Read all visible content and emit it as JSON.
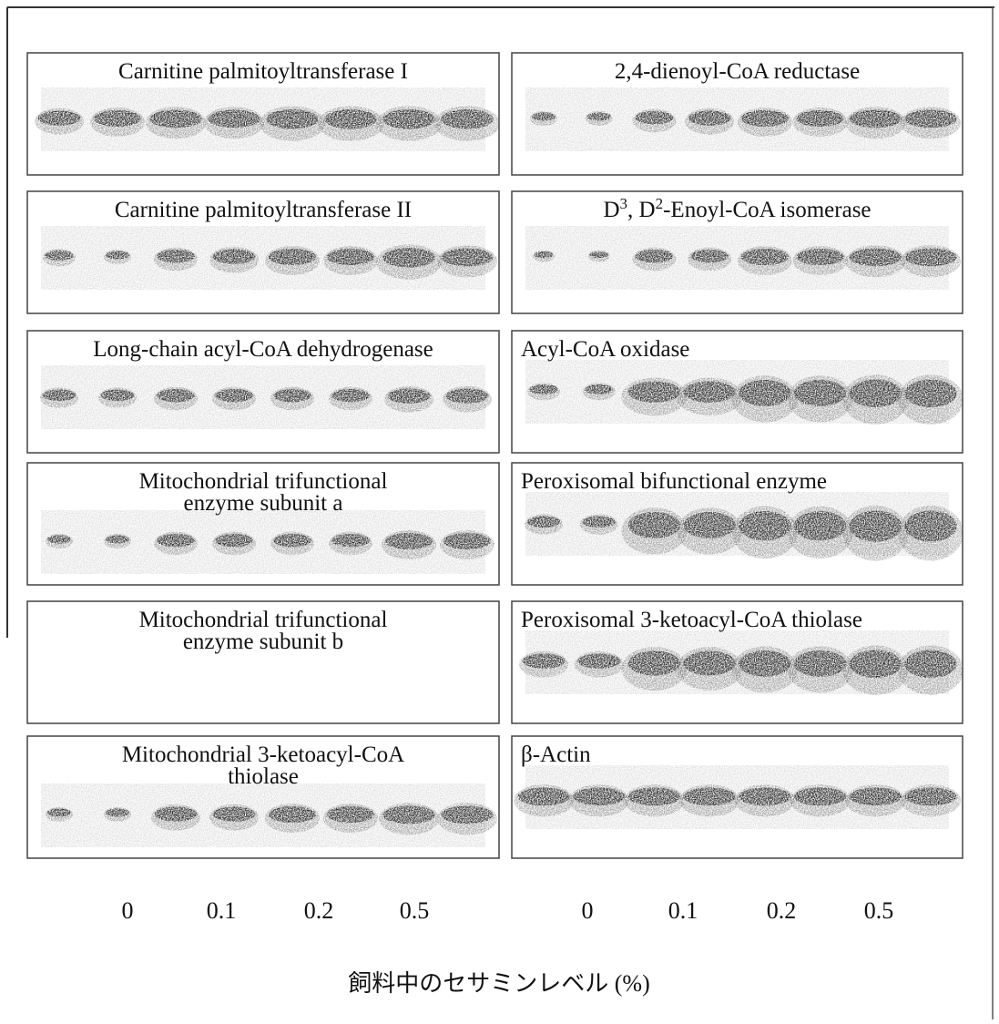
{
  "left_panels": [
    {
      "label": [
        "Carnitine palmitoyltransferase I"
      ]
    },
    {
      "label": [
        "Carnitine palmitoyltransferase II"
      ]
    },
    {
      "label": [
        "Long-chain acyl-CoA dehydrogenase"
      ]
    },
    {
      "label": [
        "Mitochondrial trifunctional",
        "enzyme subunit a"
      ]
    },
    {
      "label": [
        "Mitochondrial trifunctional",
        "enzyme subunit b"
      ]
    },
    {
      "label": [
        "Mitochondrial 3-ketoacyl-CoA",
        "thiolase"
      ]
    }
  ],
  "right_panels": [
    {
      "label": [
        "2,4-dienoyl-CoA reductase"
      ]
    },
    {
      "label": [
        [
          "D",
          "3",
          ", D",
          "2",
          "-Enoyl-CoA isomerase"
        ]
      ]
    },
    {
      "label": [
        "Acyl-CoA oxidase"
      ]
    },
    {
      "label": [
        "Peroxisomal bifunctional enzyme"
      ]
    },
    {
      "label": [
        "Peroxisomal 3-ketoacyl-CoA thiolase"
      ]
    },
    {
      "label": [
        "β-Actin"
      ]
    }
  ],
  "left_ticks": [
    "0",
    "0.1",
    "0.2",
    "0.5"
  ],
  "right_ticks": [
    "0",
    "0.1",
    "0.2",
    "0.5"
  ],
  "x_title": "飼料中のセサミンレベル (%)"
}
